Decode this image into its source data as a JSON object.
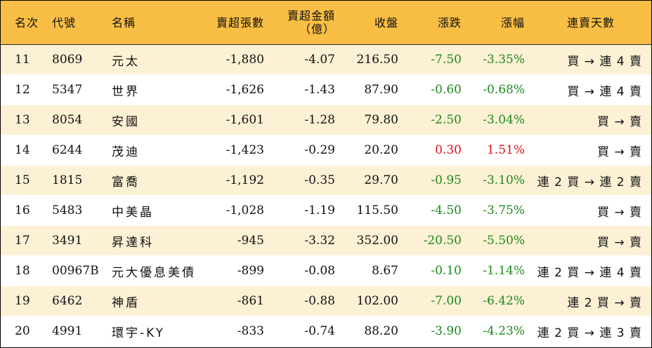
{
  "headers": {
    "rank": "名次",
    "code": "代號",
    "name": "名稱",
    "net_sell_lots": "賣超張數",
    "net_sell_amount_line1": "賣超金額",
    "net_sell_amount_line2": "（億）",
    "close": "收盤",
    "change": "漲跌",
    "change_pct": "漲幅",
    "streak": "連賣天數"
  },
  "colors": {
    "header_bg": "#f9be44",
    "odd_row_bg": "#fdf1d5",
    "even_row_bg": "#ffffff",
    "down": "#1b8a1b",
    "up": "#e01010"
  },
  "rows": [
    {
      "rank": "11",
      "code": "8069",
      "name": "元太",
      "net_sell_lots": "-1,880",
      "net_sell_amount": "-4.07",
      "close": "216.50",
      "change": "-7.50",
      "change_pct": "-3.35%",
      "direction": "down",
      "streak": "買 → 連 4 賣"
    },
    {
      "rank": "12",
      "code": "5347",
      "name": "世界",
      "net_sell_lots": "-1,626",
      "net_sell_amount": "-1.43",
      "close": "87.90",
      "change": "-0.60",
      "change_pct": "-0.68%",
      "direction": "down",
      "streak": "買 → 連 4 賣"
    },
    {
      "rank": "13",
      "code": "8054",
      "name": "安國",
      "net_sell_lots": "-1,601",
      "net_sell_amount": "-1.28",
      "close": "79.80",
      "change": "-2.50",
      "change_pct": "-3.04%",
      "direction": "down",
      "streak": "買 → 賣"
    },
    {
      "rank": "14",
      "code": "6244",
      "name": "茂迪",
      "net_sell_lots": "-1,423",
      "net_sell_amount": "-0.29",
      "close": "20.20",
      "change": "0.30",
      "change_pct": "1.51%",
      "direction": "up",
      "streak": "買 → 賣"
    },
    {
      "rank": "15",
      "code": "1815",
      "name": "富喬",
      "net_sell_lots": "-1,192",
      "net_sell_amount": "-0.35",
      "close": "29.70",
      "change": "-0.95",
      "change_pct": "-3.10%",
      "direction": "down",
      "streak": "連 2 買 → 連 2 賣"
    },
    {
      "rank": "16",
      "code": "5483",
      "name": "中美晶",
      "net_sell_lots": "-1,028",
      "net_sell_amount": "-1.19",
      "close": "115.50",
      "change": "-4.50",
      "change_pct": "-3.75%",
      "direction": "down",
      "streak": "買 → 賣"
    },
    {
      "rank": "17",
      "code": "3491",
      "name": "昇達科",
      "net_sell_lots": "-945",
      "net_sell_amount": "-3.32",
      "close": "352.00",
      "change": "-20.50",
      "change_pct": "-5.50%",
      "direction": "down",
      "streak": "買 → 賣"
    },
    {
      "rank": "18",
      "code": "00967B",
      "name": "元大優息美債",
      "net_sell_lots": "-899",
      "net_sell_amount": "-0.08",
      "close": "8.67",
      "change": "-0.10",
      "change_pct": "-1.14%",
      "direction": "down",
      "streak": "連 2 買 → 連 4 賣"
    },
    {
      "rank": "19",
      "code": "6462",
      "name": "神盾",
      "net_sell_lots": "-861",
      "net_sell_amount": "-0.88",
      "close": "102.00",
      "change": "-7.00",
      "change_pct": "-6.42%",
      "direction": "down",
      "streak": "連 2 買 → 賣"
    },
    {
      "rank": "20",
      "code": "4991",
      "name": "環宇-KY",
      "net_sell_lots": "-833",
      "net_sell_amount": "-0.74",
      "close": "88.20",
      "change": "-3.90",
      "change_pct": "-4.23%",
      "direction": "down",
      "streak": "連 2 買 → 連 3 賣"
    }
  ]
}
